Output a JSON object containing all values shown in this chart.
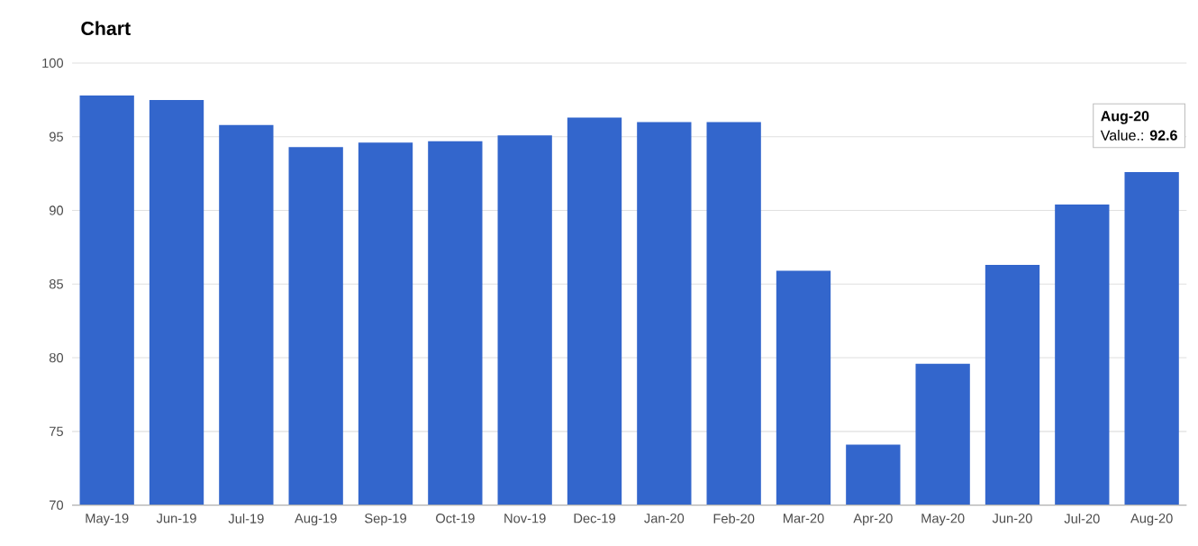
{
  "chart_data": {
    "type": "bar",
    "title": "Chart",
    "categories": [
      "May-19",
      "Jun-19",
      "Jul-19",
      "Aug-19",
      "Sep-19",
      "Oct-19",
      "Nov-19",
      "Dec-19",
      "Jan-20",
      "Feb-20",
      "Mar-20",
      "Apr-20",
      "May-20",
      "Jun-20",
      "Jul-20",
      "Aug-20"
    ],
    "values": [
      97.8,
      97.5,
      95.8,
      94.3,
      94.6,
      94.7,
      95.1,
      96.3,
      96.0,
      96.0,
      85.9,
      74.1,
      79.6,
      86.3,
      90.4,
      92.6
    ],
    "color": "#3366cc",
    "ylim": [
      70,
      100
    ],
    "yticks": [
      70,
      75,
      80,
      85,
      90,
      95,
      100
    ],
    "grid": "y",
    "annotations": [
      "Aug-20",
      "Value.: **92.6**"
    ]
  }
}
